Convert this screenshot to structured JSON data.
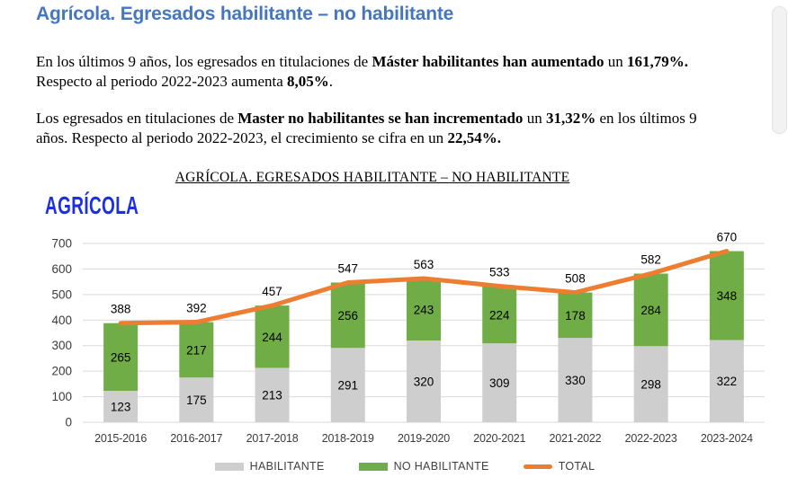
{
  "page": {
    "heading": "Agrícola. Egresados habilitante – no habilitante",
    "paragraphs": [
      {
        "runs": [
          {
            "text": "En los últimos 9 años, los egresados en titulaciones de ",
            "bold": false
          },
          {
            "text": "Máster habilitantes han aumentado",
            "bold": true
          },
          {
            "text": " un ",
            "bold": false
          },
          {
            "text": "161,79%.",
            "bold": true
          },
          {
            "text": " Respecto al periodo 2022-2023 aumenta ",
            "bold": false
          },
          {
            "text": "8,05%",
            "bold": true
          },
          {
            "text": ".",
            "bold": false
          }
        ]
      },
      {
        "runs": [
          {
            "text": "Los egresados en titulaciones de ",
            "bold": false
          },
          {
            "text": "Master no habilitantes se han incrementado",
            "bold": true
          },
          {
            "text": " un ",
            "bold": false
          },
          {
            "text": "31,32%",
            "bold": true
          },
          {
            "text": " en los últimos 9 años. Respecto al periodo 2022-2023, el crecimiento se cifra en un ",
            "bold": false
          },
          {
            "text": "22,54%.",
            "bold": true
          }
        ]
      }
    ],
    "chart_section_heading": "AGRÍCOLA. EGRESADOS HABILITANTE – NO HABILITANTE"
  },
  "chart_data": {
    "type": "bar",
    "subtype": "stacked-bars-with-total-line-overlay",
    "title": "AGRÍCOLA",
    "title_color": "#1D2FE3",
    "categories": [
      "2015-2016",
      "2016-2017",
      "2017-2018",
      "2018-2019",
      "2019-2020",
      "2020-2021",
      "2021-2022",
      "2022-2023",
      "2023-2024"
    ],
    "series": [
      {
        "name": "HABILITANTE",
        "kind": "bar",
        "color": "#CFCECE",
        "values": [
          123,
          175,
          213,
          291,
          320,
          309,
          330,
          298,
          322
        ]
      },
      {
        "name": "NO HABILITANTE",
        "kind": "bar",
        "color": "#70AD47",
        "values": [
          265,
          217,
          244,
          256,
          243,
          224,
          178,
          284,
          348
        ]
      },
      {
        "name": "TOTAL",
        "kind": "line",
        "color": "#ED7D31",
        "values": [
          388,
          392,
          457,
          547,
          563,
          533,
          508,
          582,
          670
        ]
      }
    ],
    "ylim": [
      0,
      700
    ],
    "ytick_step": 100,
    "grid": true,
    "legend_position": "bottom",
    "xlabel": "",
    "ylabel": ""
  },
  "colors": {
    "heading_blue": "#4577BE",
    "gridline": "#D9D9D9",
    "axis_text": "#3a3a3a",
    "data_label": "#000000",
    "legend_text": "#3f3f3f"
  }
}
